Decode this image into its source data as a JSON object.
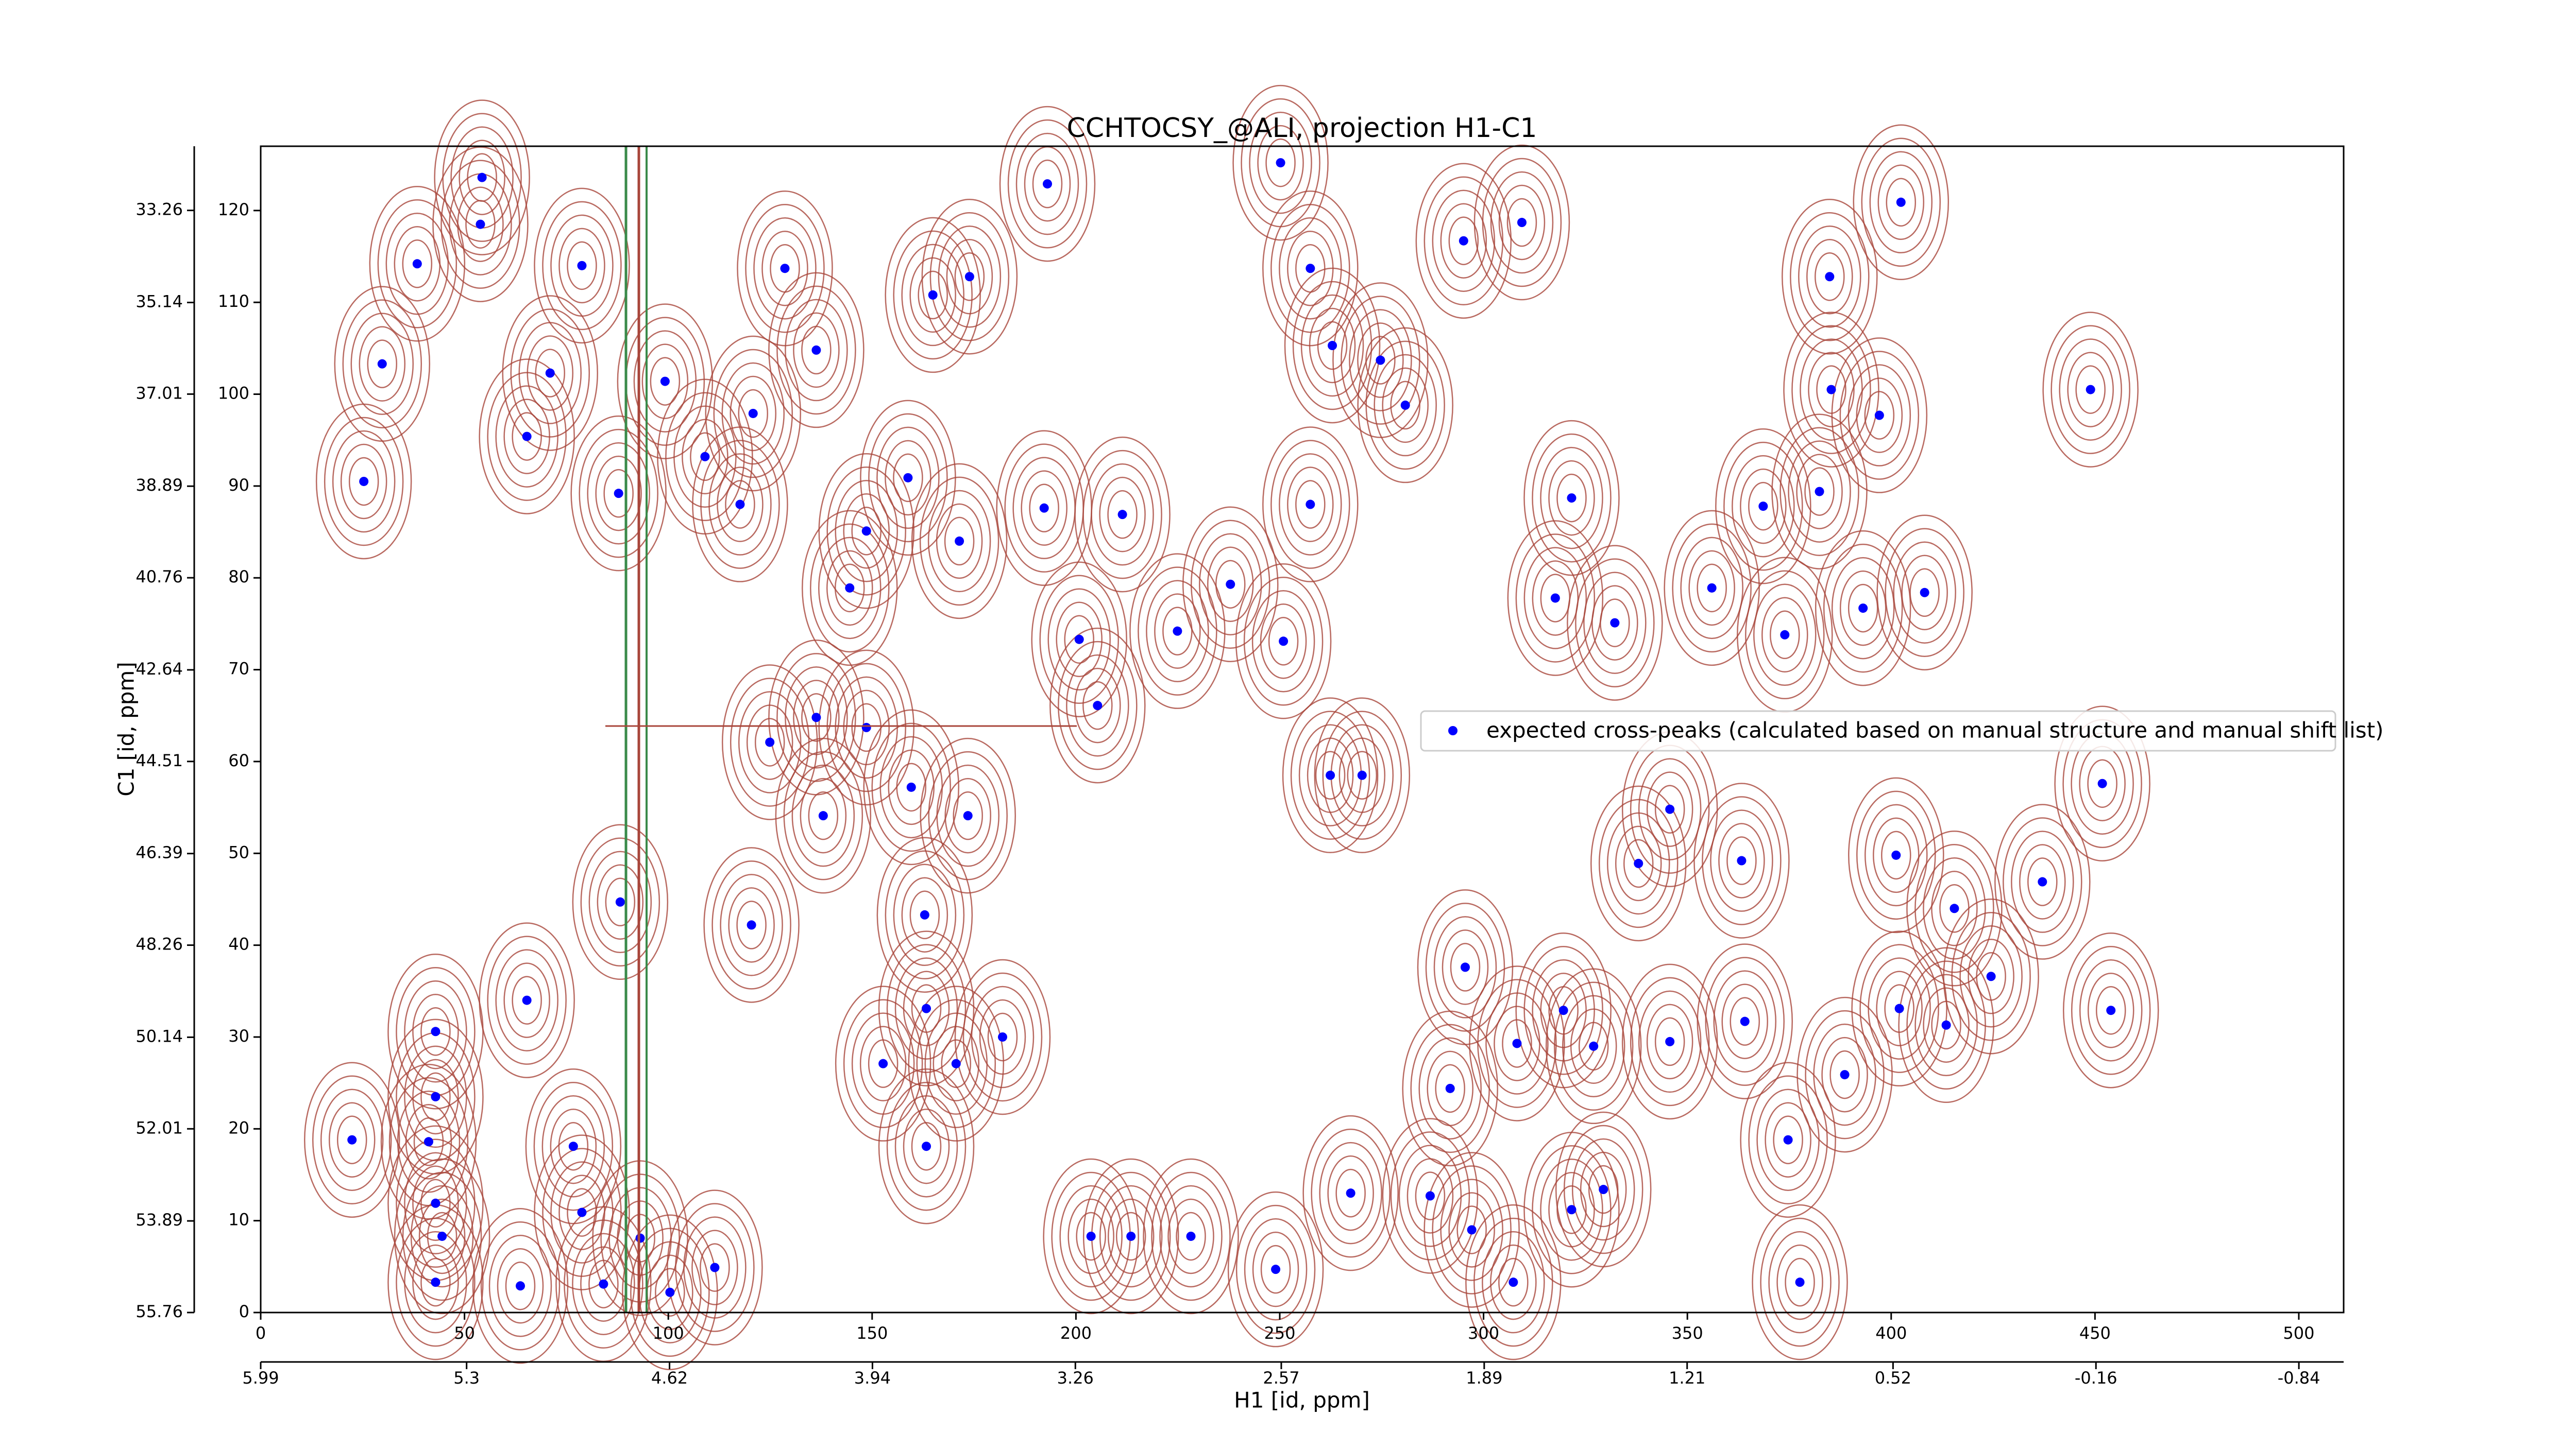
{
  "chart_data": {
    "type": "scatter",
    "title": "CCHTOCSY_@ALI, projection H1-C1",
    "xlabel": "H1 [id, ppm]",
    "ylabel": "C1 [id, ppm]",
    "xlim": [
      0,
      511
    ],
    "xticks": [
      0,
      50,
      100,
      150,
      200,
      250,
      300,
      350,
      400,
      450,
      500
    ],
    "x2lim": [
      5.99,
      -0.99
    ],
    "x2ticks": [
      5.99,
      5.3,
      4.62,
      3.94,
      3.26,
      2.57,
      1.89,
      1.21,
      0.52,
      -0.16,
      -0.84
    ],
    "ylim": [
      0,
      127
    ],
    "yticks": [
      0,
      10,
      20,
      30,
      40,
      50,
      60,
      70,
      80,
      90,
      100,
      110,
      120
    ],
    "y2lim": [
      55.76,
      31.95
    ],
    "y2ticks": [
      55.76,
      53.89,
      52.01,
      50.14,
      48.26,
      46.39,
      44.51,
      42.64,
      40.76,
      38.89,
      37.01,
      35.14,
      33.26
    ],
    "legend": "center right",
    "contour_color": "#a8453a",
    "series": [
      {
        "name": "expected cross-peaks (calculated based on manual structure and manual shift list)",
        "color": "#0000ff",
        "x": [
          54.3,
          38.4,
          29.8,
          25.3,
          22.4,
          42.9,
          42.9,
          41.2,
          42.9,
          44.5,
          42.9,
          65.3,
          63.7,
          71,
          53.9,
          65.3,
          78.8,
          87.8,
          88.2,
          99.2,
          109,
          117.6,
          120.8,
          128.6,
          136.3,
          144.5,
          148.6,
          158.8,
          164.9,
          173.9,
          171.4,
          136.3,
          124.9,
          138,
          148.6,
          159.6,
          173.5,
          120.4,
          152.7,
          170.6,
          182,
          193,
          192.2,
          200.8,
          205.3,
          211.4,
          224.9,
          250.9,
          237.9,
          257.5,
          250.2,
          257.5,
          262.9,
          274.7,
          280.8,
          295.1,
          309.4,
          321.6,
          317.6,
          332.2,
          356,
          368.6,
          384.9,
          402.4,
          385.3,
          397.1,
          382.4,
          448.9,
          408.2,
          393.1,
          373.9,
          451.8,
          437.1,
          424.5,
          453.9,
          415.5,
          401.2,
          363.3,
          345.7,
          338,
          345.7,
          327,
          319.6,
          308.2,
          295.5,
          291.8,
          286.9,
          297.1,
          307.3,
          321.6,
          329.4,
          377.6,
          374.7,
          388.6,
          364.1,
          402,
          413.5,
          267.4,
          249,
          213.5,
          203.7,
          228.2,
          262.4,
          270.2,
          111.4,
          100.4,
          84.1,
          93.1,
          78.8,
          76.7,
          163.3,
          162.9,
          163.3
        ],
        "y": [
          123.6,
          114.2,
          103.3,
          90.5,
          18.8,
          30.6,
          23.5,
          18.6,
          11.9,
          8.3,
          3.3,
          34,
          2.9,
          102.3,
          118.5,
          95.4,
          114,
          89.2,
          44.7,
          101.4,
          93.2,
          88,
          97.9,
          113.7,
          104.8,
          78.9,
          85.1,
          90.9,
          110.8,
          112.8,
          84,
          64.8,
          62.1,
          54.1,
          63.7,
          57.2,
          54.1,
          42.2,
          27.1,
          27.1,
          30,
          122.9,
          87.6,
          73.3,
          66.1,
          86.9,
          74.2,
          73.1,
          79.3,
          88,
          125.2,
          113.7,
          105.3,
          103.7,
          98.8,
          116.7,
          118.7,
          88.7,
          77.8,
          75.1,
          78.9,
          87.8,
          112.8,
          120.9,
          100.5,
          97.7,
          89.4,
          100.5,
          78.4,
          76.7,
          73.8,
          57.6,
          46.9,
          36.6,
          32.9,
          44,
          49.8,
          49.2,
          54.8,
          48.9,
          29.5,
          29,
          32.9,
          29.3,
          37.6,
          24.4,
          12.7,
          9,
          3.3,
          11.2,
          13.4,
          3.3,
          18.8,
          25.9,
          31.7,
          33.1,
          31.3,
          13,
          4.7,
          8.3,
          8.3,
          8.3,
          58.5,
          58.5,
          4.9,
          2.2,
          3.1,
          8.1,
          10.9,
          18.1,
          18.1,
          43.3,
          33.1
        ]
      }
    ]
  }
}
